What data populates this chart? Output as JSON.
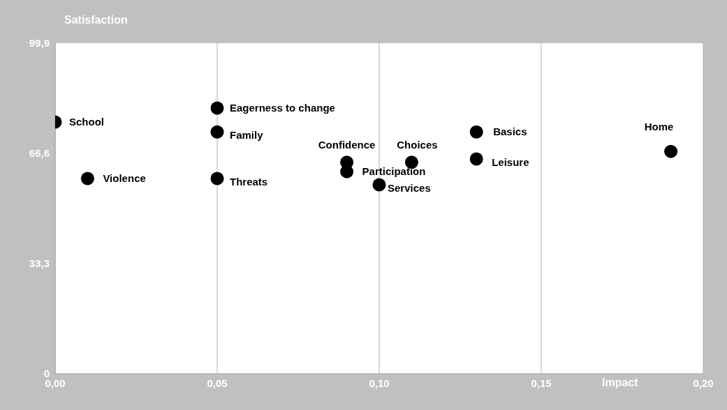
{
  "chart_data": {
    "type": "scatter",
    "xlabel": "Impact",
    "ylabel": "Satisfaction",
    "x": [
      0,
      0.01,
      0.05,
      0.05,
      0.05,
      0.09,
      0.09,
      0.1,
      0.11,
      0.13,
      0.13,
      0.19
    ],
    "values": [
      76.1,
      59.0,
      80.3,
      73.1,
      59.0,
      63.9,
      61.1,
      57.1,
      63.9,
      73.1,
      64.9,
      67.2
    ],
    "color": "#000000",
    "marker": "circle",
    "grid": true,
    "xlim": [
      0,
      0.2
    ],
    "xticks": [
      {
        "value": 0,
        "label": "0,00"
      },
      {
        "value": 0.05,
        "label": "0,05"
      },
      {
        "value": 0.1,
        "label": "0,10"
      },
      {
        "value": 0.15,
        "label": "0,15"
      },
      {
        "value": 0.2,
        "label": "0,20"
      }
    ],
    "ylim": [
      0,
      99.9
    ],
    "yticks": [
      0,
      {
        "value": 33.3,
        "label": "33,3"
      },
      {
        "value": 66.6,
        "label": "66,6"
      },
      {
        "value": 99.9,
        "label": "99,9"
      }
    ],
    "annotations": [
      {
        "text": "School",
        "x": 0,
        "y": 76.1
      },
      {
        "text": "Violence",
        "x": 0.01,
        "y": 59.0
      },
      {
        "text": "Eagerness to change",
        "x": 0.05,
        "y": 80.3
      },
      {
        "text": "Family",
        "x": 0.05,
        "y": 73.1
      },
      {
        "text": "Threats",
        "x": 0.05,
        "y": 59.0
      },
      {
        "text": "Confidence",
        "x": 0.09,
        "y": 63.9
      },
      {
        "text": "Participation",
        "x": 0.09,
        "y": 61.1
      },
      {
        "text": "Services",
        "x": 0.1,
        "y": 57.1
      },
      {
        "text": "Choices",
        "x": 0.11,
        "y": 63.9
      },
      {
        "text": "Basics",
        "x": 0.13,
        "y": 73.1
      },
      {
        "text": "Leisure",
        "x": 0.13,
        "y": 64.9
      },
      {
        "text": "Home",
        "x": 0.19,
        "y": 67.2
      }
    ]
  }
}
